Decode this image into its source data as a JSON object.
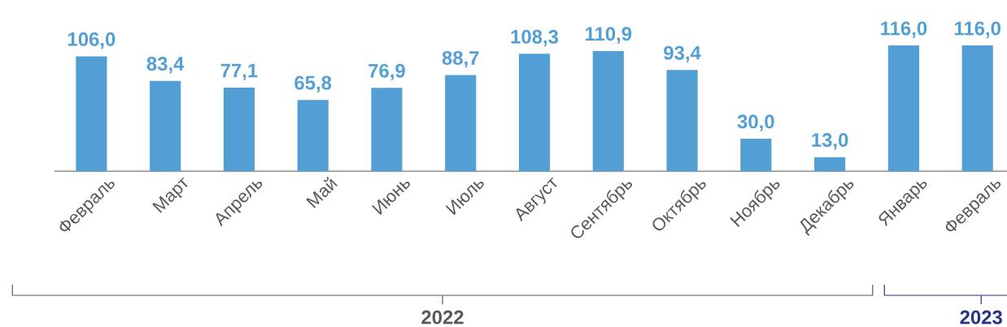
{
  "chart_data": {
    "type": "bar",
    "categories": [
      "Февраль",
      "Март",
      "Апрель",
      "Май",
      "Июнь",
      "Июль",
      "Август",
      "Сентябрь",
      "Октябрь",
      "Ноябрь",
      "Декабрь",
      "Январь",
      "Февраль"
    ],
    "values": [
      106.0,
      83.4,
      77.1,
      65.8,
      76.9,
      88.7,
      108.3,
      110.9,
      93.4,
      30.0,
      13.0,
      116.0,
      116.0
    ],
    "value_labels": [
      "106,0",
      "83,4",
      "77,1",
      "65,8",
      "76,9",
      "88,7",
      "108,3",
      "110,9",
      "93,4",
      "30,0",
      "13,0",
      "116,0",
      "116,0"
    ],
    "color": "#529fd6",
    "annotations": [
      "2022",
      "2023"
    ]
  }
}
